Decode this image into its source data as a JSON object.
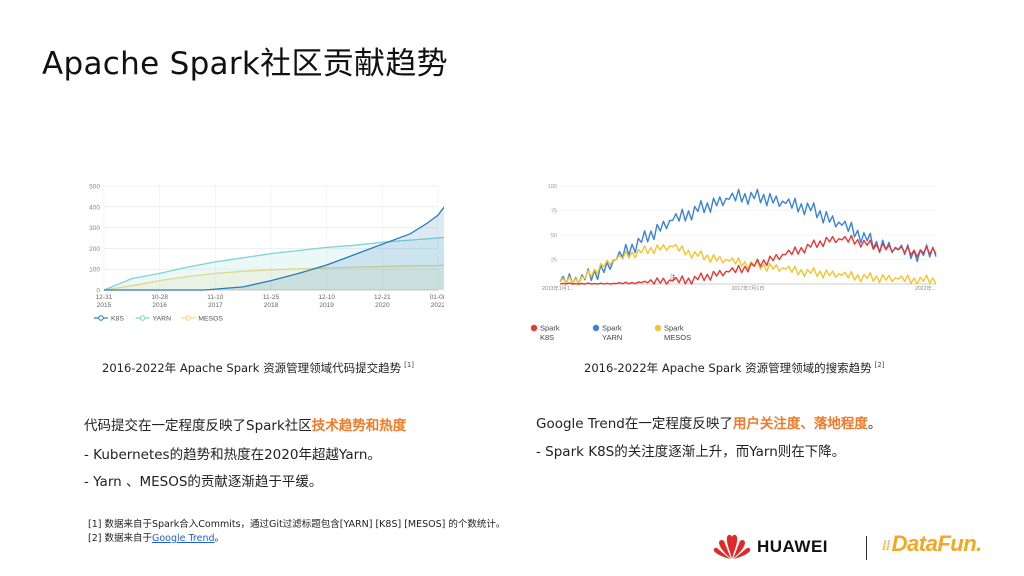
{
  "page": {
    "title": "Apache Spark社区贡献趋势"
  },
  "colors": {
    "highlight": "#f07a2a",
    "link": "#1f5fd6",
    "huawei_red": "#e02a2a",
    "datafun_orange": "#f5a623"
  },
  "chart_data": [
    {
      "type": "line",
      "title": "2016-2022年 Apache Spark 资源管理领域代码提交趋势",
      "title_ref": "[1]",
      "ylim": [
        0,
        500
      ],
      "y_ticks": [
        "0",
        "100",
        "200",
        "300",
        "400",
        "500"
      ],
      "x_ticks": [
        [
          "12-31",
          "2015"
        ],
        [
          "10-28",
          "2016"
        ],
        [
          "11-10",
          "2017"
        ],
        [
          "11-25",
          "2018"
        ],
        [
          "12-10",
          "2019"
        ],
        [
          "12-21",
          "2020"
        ],
        [
          "01-08",
          "2022"
        ]
      ],
      "legend": [
        "K8S",
        "YARN",
        "MESOS"
      ],
      "legend_position": "bottom-left",
      "grid": true,
      "series": [
        {
          "name": "YARN",
          "color": "#7fd3d6",
          "x": [
            0,
            0.5,
            1,
            1.5,
            2,
            2.5,
            3,
            3.5,
            4,
            4.5,
            5,
            5.5,
            6,
            6.18
          ],
          "values": [
            0,
            55,
            80,
            110,
            135,
            155,
            175,
            190,
            205,
            215,
            230,
            240,
            250,
            255
          ]
        },
        {
          "name": "MESOS",
          "color": "#f3d97a",
          "x": [
            0,
            0.5,
            1,
            1.5,
            2,
            2.5,
            3,
            3.5,
            4,
            4.5,
            5,
            5.5,
            6,
            6.18
          ],
          "values": [
            0,
            20,
            45,
            65,
            80,
            90,
            97,
            102,
            106,
            110,
            113,
            116,
            118,
            120
          ]
        },
        {
          "name": "K8S",
          "color": "#2b7bb9",
          "x": [
            0,
            1,
            1.8,
            2.5,
            3,
            3.5,
            4,
            4.5,
            5,
            5.5,
            5.8,
            6,
            6.1,
            6.18
          ],
          "values": [
            0,
            0,
            0,
            15,
            45,
            80,
            120,
            170,
            220,
            270,
            320,
            360,
            395,
            420
          ]
        }
      ]
    },
    {
      "type": "line",
      "title": "2016-2022年 Apache Spark 资源管理领域的搜索趋势",
      "title_ref": "[2]",
      "ylim": [
        0,
        100
      ],
      "y_ticks": [
        "100",
        "75",
        "50",
        "25"
      ],
      "x_ticks": [
        "2013年1月1...",
        "2017年7月1日",
        "2022年..."
      ],
      "annotation": "注",
      "legend": [
        {
          "label": [
            "Spark",
            "K8S"
          ],
          "color": "#e53935"
        },
        {
          "label": [
            "Spark",
            "YARN"
          ],
          "color": "#3b82d8"
        },
        {
          "label": [
            "Spark",
            "MESOS"
          ],
          "color": "#f2c530"
        }
      ],
      "legend_position": "bottom",
      "grid": true,
      "series": [
        {
          "name": "Spark YARN",
          "color": "#3b82d8",
          "x": [
            0,
            0.06,
            0.12,
            0.18,
            0.24,
            0.3,
            0.36,
            0.42,
            0.48,
            0.54,
            0.6,
            0.66,
            0.72,
            0.78,
            0.84,
            0.9,
            0.96,
            1.0
          ],
          "values": [
            2,
            5,
            15,
            35,
            50,
            65,
            75,
            83,
            90,
            88,
            82,
            78,
            65,
            55,
            40,
            35,
            30,
            35
          ]
        },
        {
          "name": "Spark MESOS",
          "color": "#f2c530",
          "x": [
            0,
            0.06,
            0.12,
            0.18,
            0.24,
            0.3,
            0.36,
            0.42,
            0.48,
            0.54,
            0.6,
            0.66,
            0.72,
            0.78,
            0.84,
            0.9,
            0.96,
            1.0
          ],
          "values": [
            2,
            5,
            20,
            30,
            35,
            38,
            30,
            25,
            22,
            18,
            15,
            12,
            10,
            8,
            6,
            5,
            4,
            4
          ]
        },
        {
          "name": "Spark K8S",
          "color": "#e53935",
          "x": [
            0,
            0.06,
            0.12,
            0.18,
            0.24,
            0.3,
            0.36,
            0.42,
            0.48,
            0.54,
            0.6,
            0.66,
            0.72,
            0.78,
            0.84,
            0.9,
            0.96,
            1.0
          ],
          "values": [
            0,
            0,
            0,
            1,
            2,
            3,
            5,
            10,
            15,
            22,
            30,
            38,
            45,
            45,
            38,
            35,
            32,
            35
          ]
        }
      ]
    }
  ],
  "left_text": {
    "heading_prefix": "代码提交在一定程度反映了Spark社区",
    "heading_highlight": "技术趋势和热度",
    "bullet1": "- Kubernetes的趋势和热度在2020年超越Yarn。",
    "bullet2": "- Yarn 、MESOS的贡献逐渐趋于平缓。"
  },
  "right_text": {
    "heading_prefix": "Google Trend在一定程度反映了",
    "heading_highlight": "用户关注度、落地程度",
    "heading_suffix": "。",
    "bullet1": "- Spark K8S的关注度逐渐上升，而Yarn则在下降。"
  },
  "footnotes": {
    "note1": "[1] 数据来自于Spark合入Commits，通过Git过滤标题包含[YARN] [K8S] [MESOS] 的个数统计。",
    "note2_prefix": "[2] 数据来自于",
    "note2_link": "Google Trend",
    "note2_suffix": "。"
  },
  "logos": {
    "huawei": "HUAWEI",
    "datafun": "DataFun."
  }
}
